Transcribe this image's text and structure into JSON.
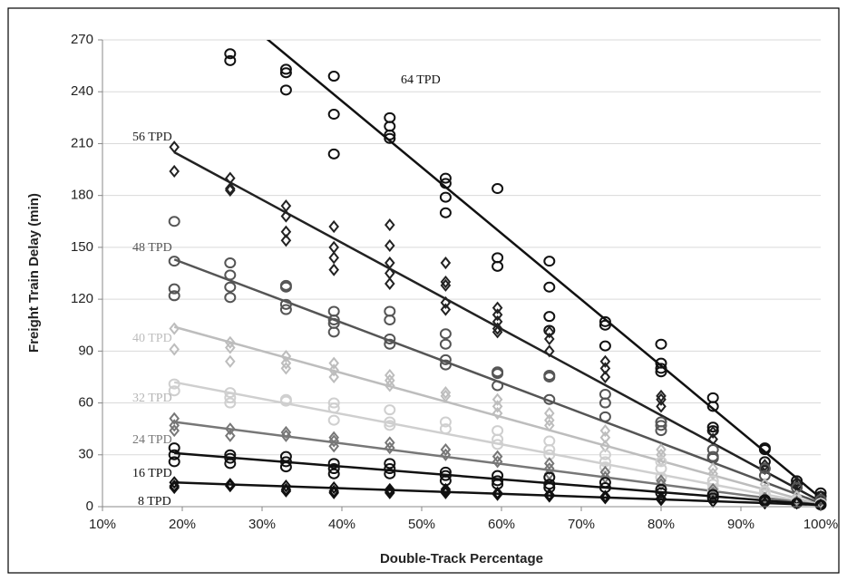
{
  "chart_data": {
    "type": "scatter",
    "x_label": "Double-Track Percentage",
    "y_label": "Freight Train Delay (min)",
    "xlim": [
      10,
      100
    ],
    "xticks": [
      {
        "value": 10,
        "label": "10%"
      },
      {
        "value": 20,
        "label": "20%"
      },
      {
        "value": 30,
        "label": "30%"
      },
      {
        "value": 40,
        "label": "40%"
      },
      {
        "value": 50,
        "label": "50%"
      },
      {
        "value": 60,
        "label": "60%"
      },
      {
        "value": 70,
        "label": "70%"
      },
      {
        "value": 80,
        "label": "80%"
      },
      {
        "value": 90,
        "label": "90%"
      },
      {
        "value": 100,
        "label": "100%"
      }
    ],
    "ylim": [
      0,
      270
    ],
    "yticks": [
      0,
      30,
      60,
      90,
      120,
      150,
      180,
      210,
      240,
      270
    ],
    "grid": true,
    "series": [
      {
        "name": "64 TPD",
        "color": "#111111",
        "marker": "circle",
        "trend": [
          [
            19,
            315
          ],
          [
            100,
            5
          ]
        ],
        "points": [
          [
            26,
            262
          ],
          [
            26,
            258
          ],
          [
            33,
            253
          ],
          [
            33,
            251
          ],
          [
            33,
            241
          ],
          [
            39,
            249
          ],
          [
            39,
            227
          ],
          [
            39,
            204
          ],
          [
            46,
            225
          ],
          [
            46,
            220
          ],
          [
            46,
            215
          ],
          [
            46,
            213
          ],
          [
            53,
            190
          ],
          [
            53,
            187
          ],
          [
            53,
            179
          ],
          [
            53,
            170
          ],
          [
            59.5,
            184
          ],
          [
            59.5,
            144
          ],
          [
            59.5,
            139
          ],
          [
            66,
            142
          ],
          [
            66,
            127
          ],
          [
            66,
            110
          ],
          [
            66,
            102
          ],
          [
            73,
            107
          ],
          [
            73,
            105
          ],
          [
            73,
            93
          ],
          [
            80,
            94
          ],
          [
            80,
            83
          ],
          [
            80,
            80
          ],
          [
            80,
            78
          ],
          [
            86.5,
            63
          ],
          [
            86.5,
            58
          ],
          [
            86.5,
            46
          ],
          [
            86.5,
            44
          ],
          [
            93,
            34
          ],
          [
            93,
            33
          ],
          [
            93,
            26
          ],
          [
            97,
            15
          ],
          [
            97,
            13
          ],
          [
            100,
            8
          ],
          [
            100,
            6
          ]
        ]
      },
      {
        "name": "56 TPD",
        "color": "#222222",
        "marker": "diamond",
        "trend": [
          [
            19,
            205
          ],
          [
            100,
            3
          ]
        ],
        "points": [
          [
            19,
            208
          ],
          [
            19,
            194
          ],
          [
            26,
            190
          ],
          [
            26,
            184
          ],
          [
            26,
            183
          ],
          [
            33,
            174
          ],
          [
            33,
            168
          ],
          [
            33,
            159
          ],
          [
            33,
            154
          ],
          [
            39,
            162
          ],
          [
            39,
            150
          ],
          [
            39,
            144
          ],
          [
            39,
            137
          ],
          [
            46,
            163
          ],
          [
            46,
            151
          ],
          [
            46,
            141
          ],
          [
            46,
            135
          ],
          [
            46,
            129
          ],
          [
            53,
            141
          ],
          [
            53,
            130
          ],
          [
            53,
            128
          ],
          [
            53,
            118
          ],
          [
            53,
            114
          ],
          [
            59.5,
            115
          ],
          [
            59.5,
            111
          ],
          [
            59.5,
            107
          ],
          [
            59.5,
            103
          ],
          [
            59.5,
            101
          ],
          [
            66,
            101
          ],
          [
            66,
            97
          ],
          [
            66,
            90
          ],
          [
            73,
            84
          ],
          [
            73,
            80
          ],
          [
            73,
            75
          ],
          [
            80,
            64
          ],
          [
            80,
            62
          ],
          [
            80,
            58
          ],
          [
            86.5,
            43
          ],
          [
            86.5,
            39
          ],
          [
            93,
            24
          ],
          [
            93,
            22
          ],
          [
            97,
            14
          ],
          [
            97,
            12
          ],
          [
            100,
            6
          ],
          [
            100,
            4
          ]
        ]
      },
      {
        "name": "48 TPD",
        "color": "#555555",
        "marker": "circle",
        "trend": [
          [
            19,
            143
          ],
          [
            100,
            2
          ]
        ],
        "points": [
          [
            19,
            165
          ],
          [
            19,
            142
          ],
          [
            19,
            126
          ],
          [
            19,
            122
          ],
          [
            26,
            141
          ],
          [
            26,
            134
          ],
          [
            26,
            127
          ],
          [
            26,
            121
          ],
          [
            33,
            128
          ],
          [
            33,
            127
          ],
          [
            33,
            117
          ],
          [
            33,
            114
          ],
          [
            39,
            113
          ],
          [
            39,
            108
          ],
          [
            39,
            106
          ],
          [
            39,
            101
          ],
          [
            46,
            113
          ],
          [
            46,
            108
          ],
          [
            46,
            97
          ],
          [
            46,
            94
          ],
          [
            53,
            100
          ],
          [
            53,
            94
          ],
          [
            53,
            85
          ],
          [
            53,
            82
          ],
          [
            59.5,
            78
          ],
          [
            59.5,
            77
          ],
          [
            59.5,
            70
          ],
          [
            66,
            76
          ],
          [
            66,
            75
          ],
          [
            66,
            62
          ],
          [
            73,
            65
          ],
          [
            73,
            60
          ],
          [
            73,
            52
          ],
          [
            80,
            49
          ],
          [
            80,
            47
          ],
          [
            80,
            44
          ],
          [
            86.5,
            33
          ],
          [
            86.5,
            29
          ],
          [
            86.5,
            28
          ],
          [
            93,
            22
          ],
          [
            93,
            18
          ],
          [
            97,
            11
          ],
          [
            100,
            4
          ]
        ]
      },
      {
        "name": "40 TPD",
        "color": "#bdbdbd",
        "marker": "diamond",
        "trend": [
          [
            19,
            104
          ],
          [
            100,
            1
          ]
        ],
        "points": [
          [
            19,
            103
          ],
          [
            19,
            91
          ],
          [
            26,
            95
          ],
          [
            26,
            92
          ],
          [
            26,
            84
          ],
          [
            33,
            87
          ],
          [
            33,
            83
          ],
          [
            33,
            80
          ],
          [
            39,
            83
          ],
          [
            39,
            79
          ],
          [
            39,
            75
          ],
          [
            46,
            76
          ],
          [
            46,
            73
          ],
          [
            46,
            70
          ],
          [
            53,
            66
          ],
          [
            53,
            64
          ],
          [
            59.5,
            62
          ],
          [
            59.5,
            58
          ],
          [
            59.5,
            54
          ],
          [
            66,
            54
          ],
          [
            66,
            50
          ],
          [
            66,
            47
          ],
          [
            73,
            44
          ],
          [
            73,
            40
          ],
          [
            73,
            35
          ],
          [
            80,
            33
          ],
          [
            80,
            30
          ],
          [
            80,
            27
          ],
          [
            86.5,
            22
          ],
          [
            86.5,
            19
          ],
          [
            93,
            13
          ],
          [
            93,
            10
          ],
          [
            97,
            6
          ],
          [
            100,
            2
          ]
        ]
      },
      {
        "name": "32 TPD",
        "color": "#cfcfcf",
        "marker": "circle",
        "trend": [
          [
            19,
            72
          ],
          [
            100,
            1
          ]
        ],
        "points": [
          [
            19,
            71
          ],
          [
            19,
            67
          ],
          [
            26,
            66
          ],
          [
            26,
            63
          ],
          [
            26,
            60
          ],
          [
            33,
            62
          ],
          [
            33,
            61
          ],
          [
            39,
            60
          ],
          [
            39,
            57
          ],
          [
            39,
            50
          ],
          [
            46,
            56
          ],
          [
            46,
            49
          ],
          [
            46,
            47
          ],
          [
            53,
            49
          ],
          [
            53,
            45
          ],
          [
            59.5,
            44
          ],
          [
            59.5,
            39
          ],
          [
            59.5,
            36
          ],
          [
            66,
            38
          ],
          [
            66,
            33
          ],
          [
            66,
            30
          ],
          [
            73,
            30
          ],
          [
            73,
            26
          ],
          [
            73,
            23
          ],
          [
            80,
            26
          ],
          [
            80,
            22
          ],
          [
            80,
            17
          ],
          [
            86.5,
            15
          ],
          [
            86.5,
            13
          ],
          [
            86.5,
            10
          ],
          [
            93,
            9
          ],
          [
            93,
            7
          ],
          [
            97,
            4
          ],
          [
            100,
            2
          ]
        ]
      },
      {
        "name": "24 TPD",
        "color": "#777777",
        "marker": "diamond",
        "trend": [
          [
            19,
            49
          ],
          [
            100,
            1
          ]
        ],
        "points": [
          [
            19,
            51
          ],
          [
            19,
            47
          ],
          [
            19,
            44
          ],
          [
            26,
            45
          ],
          [
            26,
            41
          ],
          [
            33,
            43
          ],
          [
            33,
            41
          ],
          [
            39,
            40
          ],
          [
            39,
            38
          ],
          [
            39,
            35
          ],
          [
            46,
            37
          ],
          [
            46,
            34
          ],
          [
            53,
            33
          ],
          [
            53,
            30
          ],
          [
            59.5,
            29
          ],
          [
            59.5,
            26
          ],
          [
            66,
            25
          ],
          [
            66,
            22
          ],
          [
            66,
            19
          ],
          [
            73,
            20
          ],
          [
            73,
            17
          ],
          [
            80,
            15
          ],
          [
            80,
            13
          ],
          [
            86.5,
            10
          ],
          [
            86.5,
            8
          ],
          [
            93,
            5
          ],
          [
            97,
            3
          ],
          [
            100,
            1
          ]
        ]
      },
      {
        "name": "16 TPD",
        "color": "#111111",
        "marker": "circle",
        "trend": [
          [
            19,
            31
          ],
          [
            100,
            1
          ]
        ],
        "points": [
          [
            19,
            34
          ],
          [
            19,
            30
          ],
          [
            19,
            26
          ],
          [
            26,
            30
          ],
          [
            26,
            28
          ],
          [
            26,
            25
          ],
          [
            33,
            29
          ],
          [
            33,
            26
          ],
          [
            33,
            23
          ],
          [
            39,
            25
          ],
          [
            39,
            22
          ],
          [
            39,
            19
          ],
          [
            46,
            25
          ],
          [
            46,
            22
          ],
          [
            46,
            19
          ],
          [
            53,
            20
          ],
          [
            53,
            18
          ],
          [
            53,
            15
          ],
          [
            59.5,
            18
          ],
          [
            59.5,
            15
          ],
          [
            59.5,
            13
          ],
          [
            66,
            17
          ],
          [
            66,
            13
          ],
          [
            66,
            11
          ],
          [
            73,
            14
          ],
          [
            73,
            11
          ],
          [
            80,
            10
          ],
          [
            80,
            8
          ],
          [
            86.5,
            7
          ],
          [
            86.5,
            5
          ],
          [
            93,
            4
          ],
          [
            93,
            3
          ],
          [
            97,
            2
          ],
          [
            100,
            1
          ]
        ]
      },
      {
        "name": "8 TPD",
        "color": "#111111",
        "marker": "diamond",
        "trend": [
          [
            19,
            14
          ],
          [
            100,
            1
          ]
        ],
        "points": [
          [
            19,
            14
          ],
          [
            19,
            12
          ],
          [
            19,
            11
          ],
          [
            26,
            13
          ],
          [
            26,
            12
          ],
          [
            33,
            12
          ],
          [
            33,
            10
          ],
          [
            33,
            9
          ],
          [
            39,
            11
          ],
          [
            39,
            9
          ],
          [
            39,
            8
          ],
          [
            46,
            10
          ],
          [
            46,
            9
          ],
          [
            46,
            8
          ],
          [
            53,
            10
          ],
          [
            53,
            9
          ],
          [
            53,
            8
          ],
          [
            59.5,
            8
          ],
          [
            59.5,
            7
          ],
          [
            66,
            7
          ],
          [
            66,
            6
          ],
          [
            73,
            6
          ],
          [
            73,
            5
          ],
          [
            80,
            5
          ],
          [
            80,
            4
          ],
          [
            86.5,
            3
          ],
          [
            93,
            2
          ],
          [
            97,
            2
          ],
          [
            100,
            1
          ]
        ]
      }
    ]
  }
}
